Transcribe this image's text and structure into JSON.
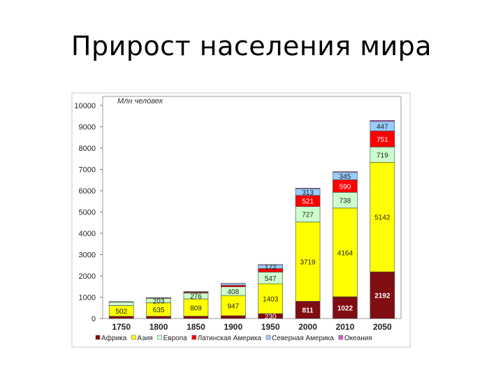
{
  "slide": {
    "title": "Прирост населения мира"
  },
  "chart_data": {
    "type": "bar",
    "stacked": true,
    "ylabel": "Млн человек",
    "ylim": [
      0,
      10000
    ],
    "yticks": [
      0,
      1000,
      2000,
      3000,
      4000,
      5000,
      6000,
      7000,
      8000,
      9000,
      10000
    ],
    "grid": false,
    "legend_position": "bottom",
    "categories": [
      "1750",
      "1800",
      "1850",
      "1900",
      "1950",
      "2000",
      "2010",
      "2050"
    ],
    "series": [
      {
        "name": "Африка",
        "color": "#7f0d12",
        "values": [
          106,
          107,
          111,
          133,
          230,
          811,
          1022,
          2192
        ],
        "labels": [
          "",
          "",
          "",
          "",
          "230",
          "811",
          "1022",
          "2192"
        ]
      },
      {
        "name": "Азия",
        "color": "#ffff00",
        "values": [
          502,
          635,
          809,
          947,
          1403,
          3719,
          4164,
          5142
        ],
        "labels": [
          "502",
          "635",
          "809",
          "947",
          "1403",
          "3719",
          "4164",
          "5142"
        ]
      },
      {
        "name": "Европа",
        "color": "#ccffcc",
        "values": [
          163,
          203,
          276,
          408,
          547,
          727,
          738,
          719
        ],
        "labels": [
          "",
          "203",
          "276",
          "408",
          "547",
          "727",
          "738",
          "719"
        ]
      },
      {
        "name": "Латинская Америка",
        "color": "#ff0000",
        "values": [
          16,
          24,
          38,
          74,
          167,
          521,
          590,
          751
        ],
        "labels": [
          "",
          "",
          "",
          "",
          "",
          "521",
          "590",
          "751"
        ]
      },
      {
        "name": "Северная Америка",
        "color": "#99ccff",
        "values": [
          2,
          7,
          26,
          82,
          172,
          313,
          345,
          447
        ],
        "labels": [
          "",
          "",
          "",
          "",
          "172",
          "313",
          "345",
          "447"
        ]
      },
      {
        "name": "Океания",
        "color": "#cc66cc",
        "values": [
          2,
          2,
          2,
          6,
          13,
          31,
          36,
          51
        ],
        "labels": [
          "",
          "",
          "",
          "",
          "",
          "",
          "",
          ""
        ]
      }
    ]
  }
}
